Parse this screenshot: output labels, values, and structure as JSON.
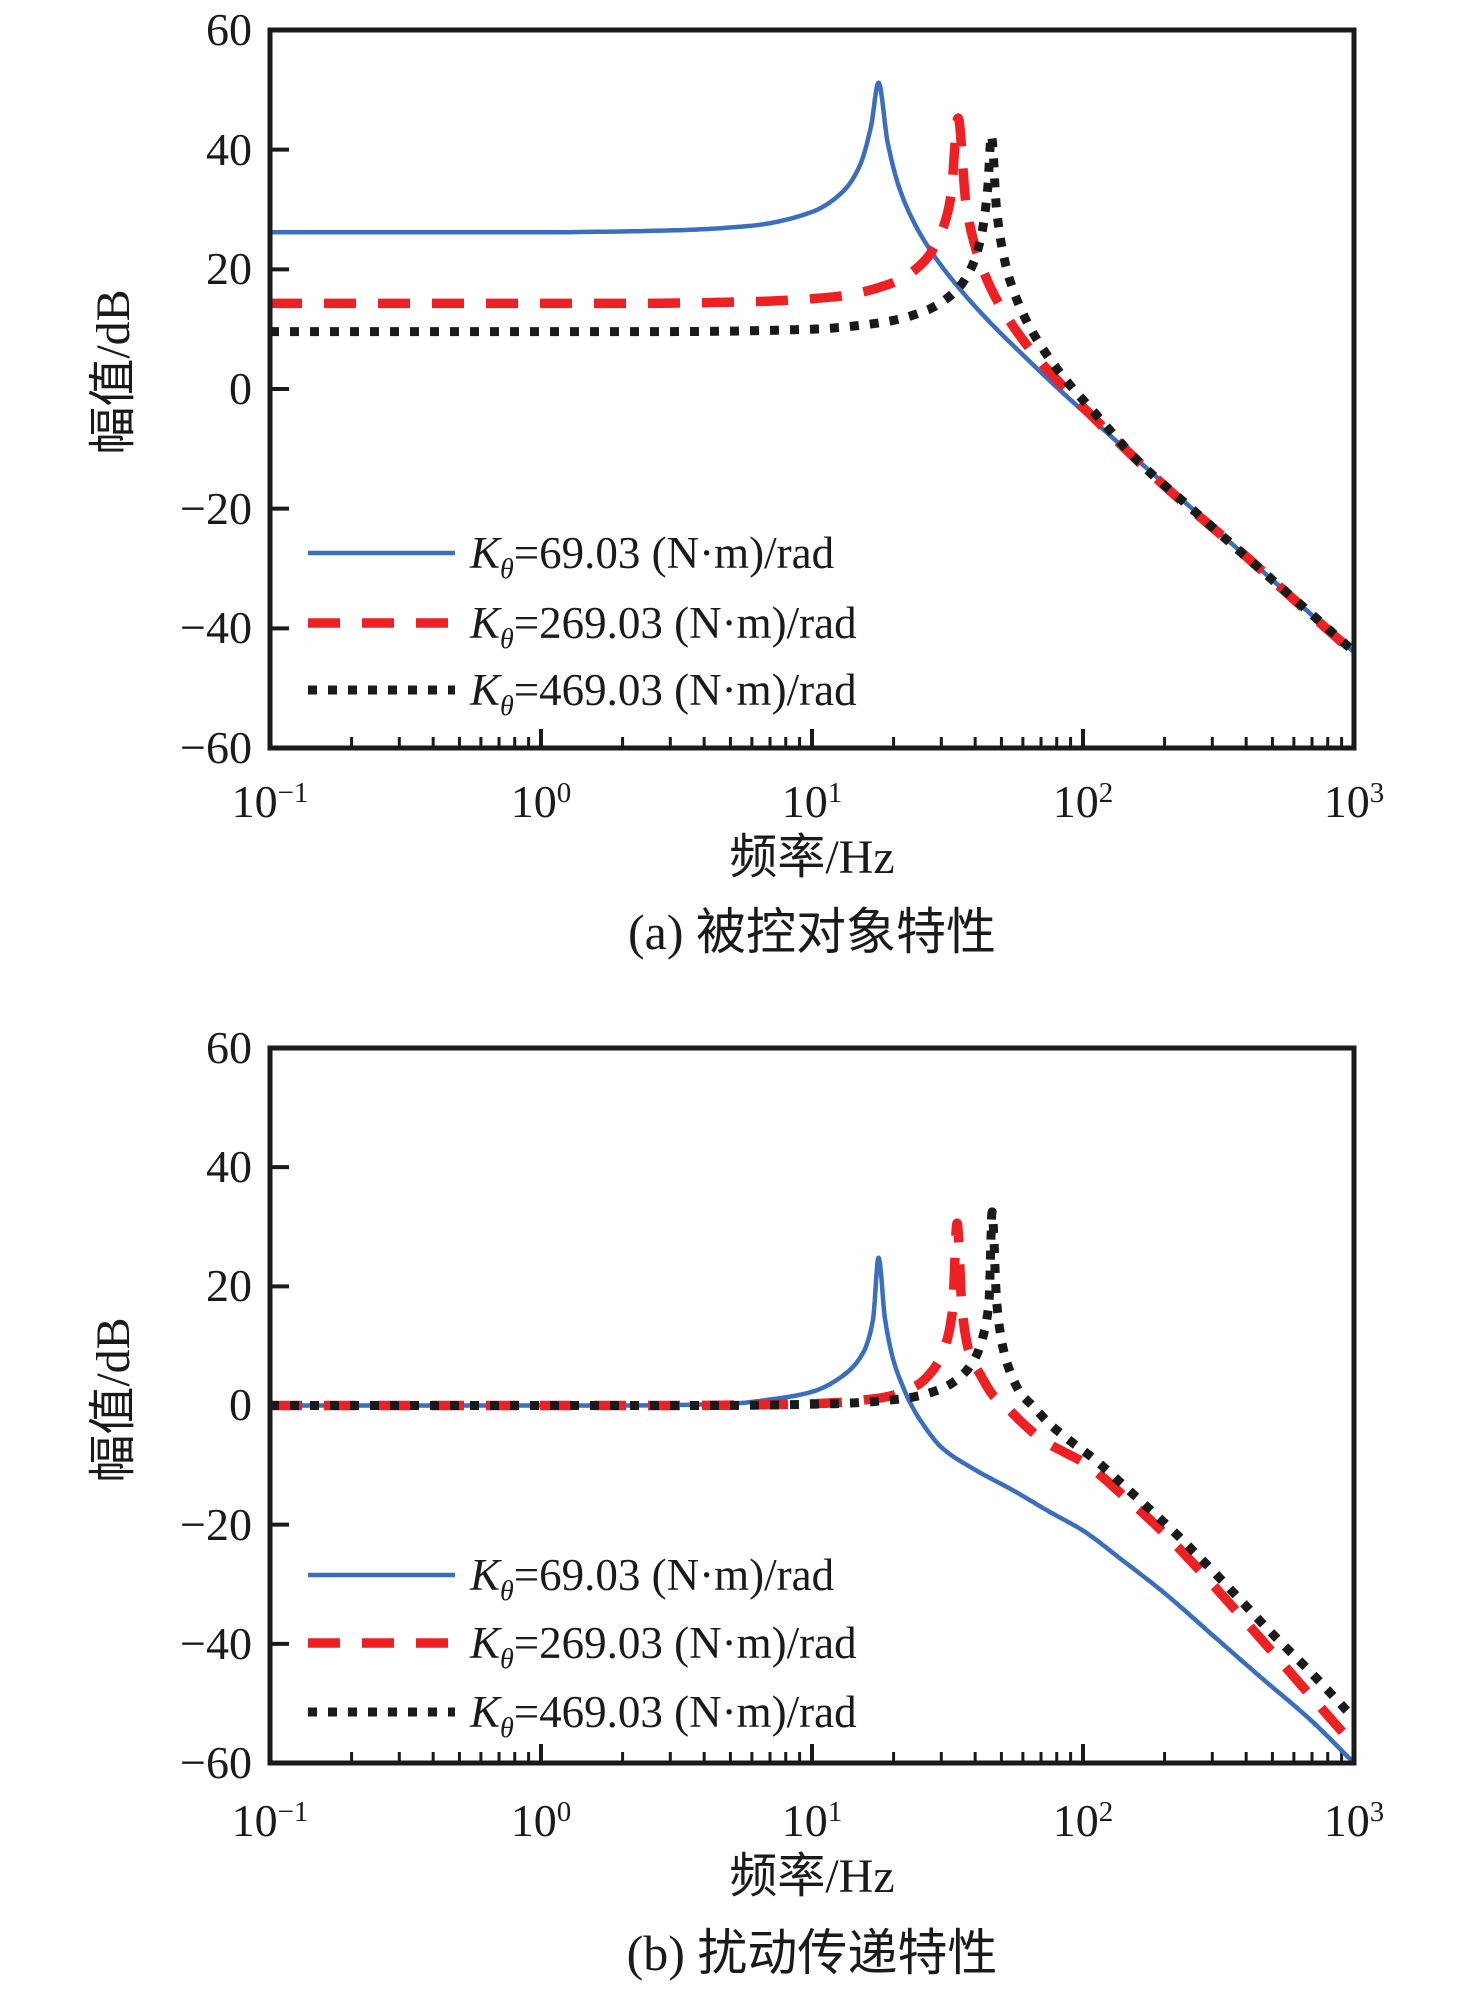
{
  "page": {
    "background": "#ffffff",
    "text_color": "#1a1a1a",
    "axis_color": "#1a1a1a"
  },
  "chart_data": [
    {
      "type": "line",
      "panel_id": "a",
      "caption": "(a) 被控对象特性",
      "xlabel": "频率/Hz",
      "ylabel": "幅值/dB",
      "x_scale": "log10",
      "xlim": [
        0.1,
        1000
      ],
      "ylim": [
        -60,
        60
      ],
      "grid": false,
      "legend_position": "lower-left-inside",
      "y_ticks": [
        60,
        40,
        20,
        0,
        -20,
        -40,
        -60
      ],
      "y_tick_labels": [
        "60",
        "40",
        "20",
        "0",
        "−20",
        "−40",
        "−60"
      ],
      "x_ticks": [
        {
          "base": "10",
          "exp": "−1"
        },
        {
          "base": "10",
          "exp": "0"
        },
        {
          "base": "10",
          "exp": "1"
        },
        {
          "base": "10",
          "exp": "2"
        },
        {
          "base": "10",
          "exp": "3"
        }
      ],
      "series": [
        {
          "label_k": "K",
          "label_sub": "θ",
          "label_rest": "=69.03 (N·m)/rad",
          "color": "#3B6FBD",
          "style": "solid",
          "low_freq_db": 26.2,
          "peak_hz": 17.6,
          "peak_db": 51.2,
          "points": [
            [
              0.1,
              26.2
            ],
            [
              1,
              26.2
            ],
            [
              3,
              26.5
            ],
            [
              6,
              27.3
            ],
            [
              10,
              29.6
            ],
            [
              13,
              33.0
            ],
            [
              15,
              37.3
            ],
            [
              16.5,
              43.8
            ],
            [
              17.6,
              51.2
            ],
            [
              19,
              41.3
            ],
            [
              21,
              33.6
            ],
            [
              24,
              27.5
            ],
            [
              28,
              22.5
            ],
            [
              35,
              16.8
            ],
            [
              45,
              11.3
            ],
            [
              60,
              5.7
            ],
            [
              80,
              0.3
            ],
            [
              100,
              -3.7
            ],
            [
              200,
              -15.9
            ],
            [
              400,
              -28.0
            ],
            [
              700,
              -37.8
            ],
            [
              1000,
              -44.0
            ]
          ]
        },
        {
          "label_k": "K",
          "label_sub": "θ",
          "label_rest": "=269.03 (N·m)/rad",
          "color": "#ED2024",
          "style": "dashed",
          "low_freq_db": 14.3,
          "peak_hz": 34.6,
          "peak_db": 45.3,
          "points": [
            [
              0.1,
              14.3
            ],
            [
              2,
              14.3
            ],
            [
              6,
              14.6
            ],
            [
              12,
              15.4
            ],
            [
              20,
              17.8
            ],
            [
              26,
              21.4
            ],
            [
              30,
              26.2
            ],
            [
              32.5,
              32.0
            ],
            [
              34.6,
              45.3
            ],
            [
              37,
              31.0
            ],
            [
              40,
              23.8
            ],
            [
              45,
              17.5
            ],
            [
              52,
              12.3
            ],
            [
              65,
              6.2
            ],
            [
              85,
              0.3
            ],
            [
              110,
              -4.9
            ],
            [
              200,
              -16.2
            ],
            [
              400,
              -28.0
            ],
            [
              700,
              -37.9
            ],
            [
              1000,
              -44.1
            ]
          ]
        },
        {
          "label_k": "K",
          "label_sub": "θ",
          "label_rest": "=469.03 (N·m)/rad",
          "color": "#1A1A1A",
          "style": "dotted",
          "low_freq_db": 9.6,
          "peak_hz": 45.9,
          "peak_db": 42.4,
          "points": [
            [
              0.1,
              9.6
            ],
            [
              3,
              9.6
            ],
            [
              10,
              10.0
            ],
            [
              18,
              11.1
            ],
            [
              26,
              13.0
            ],
            [
              33,
              15.9
            ],
            [
              38,
              19.5
            ],
            [
              42,
              25.3
            ],
            [
              44.5,
              33.5
            ],
            [
              45.9,
              42.4
            ],
            [
              48,
              29.9
            ],
            [
              52,
              20.5
            ],
            [
              58,
              14.1
            ],
            [
              68,
              8.1
            ],
            [
              85,
              1.9
            ],
            [
              110,
              -3.9
            ],
            [
              160,
              -12.1
            ],
            [
              250,
              -19.9
            ],
            [
              450,
              -30.1
            ],
            [
              700,
              -37.7
            ],
            [
              1000,
              -43.9
            ]
          ]
        }
      ]
    },
    {
      "type": "line",
      "panel_id": "b",
      "caption": "(b) 扰动传递特性",
      "xlabel": "频率/Hz",
      "ylabel": "幅值/dB",
      "x_scale": "log10",
      "xlim": [
        0.1,
        1000
      ],
      "ylim": [
        -60,
        60
      ],
      "grid": false,
      "legend_position": "lower-left-inside",
      "y_ticks": [
        60,
        40,
        20,
        0,
        -20,
        -40,
        -60
      ],
      "y_tick_labels": [
        "60",
        "40",
        "20",
        "0",
        "−20",
        "−40",
        "−60"
      ],
      "x_ticks": [
        {
          "base": "10",
          "exp": "−1"
        },
        {
          "base": "10",
          "exp": "0"
        },
        {
          "base": "10",
          "exp": "1"
        },
        {
          "base": "10",
          "exp": "2"
        },
        {
          "base": "10",
          "exp": "3"
        }
      ],
      "series": [
        {
          "label_k": "K",
          "label_sub": "θ",
          "label_rest": "=69.03 (N·m)/rad",
          "color": "#3B6FBD",
          "style": "solid",
          "low_freq_db": 0,
          "peak_hz": 17.6,
          "peak_db": 24.8,
          "points": [
            [
              0.1,
              0
            ],
            [
              2,
              0
            ],
            [
              5,
              0.3
            ],
            [
              7,
              1.0
            ],
            [
              10,
              2.3
            ],
            [
              13,
              5.0
            ],
            [
              15.5,
              9.0
            ],
            [
              16.8,
              14.5
            ],
            [
              17.6,
              24.8
            ],
            [
              18.6,
              14.5
            ],
            [
              20,
              7.5
            ],
            [
              21.5,
              3.5
            ],
            [
              23,
              0.5
            ],
            [
              26,
              -3.5
            ],
            [
              30,
              -7.0
            ],
            [
              40,
              -10.8
            ],
            [
              55,
              -14.2
            ],
            [
              75,
              -17.8
            ],
            [
              100,
              -21.0
            ],
            [
              140,
              -26.0
            ],
            [
              200,
              -31.5
            ],
            [
              300,
              -38.5
            ],
            [
              450,
              -45.5
            ],
            [
              700,
              -53.0
            ],
            [
              1000,
              -60.0
            ]
          ]
        },
        {
          "label_k": "K",
          "label_sub": "θ",
          "label_rest": "=269.03 (N·m)/rad",
          "color": "#ED2024",
          "style": "dashed",
          "low_freq_db": 0,
          "peak_hz": 34.3,
          "peak_db": 30.6,
          "points": [
            [
              0.1,
              0
            ],
            [
              3,
              0
            ],
            [
              10,
              0.3
            ],
            [
              18,
              1.3
            ],
            [
              24,
              3.2
            ],
            [
              28,
              6.0
            ],
            [
              31,
              10.0
            ],
            [
              33,
              16.0
            ],
            [
              34.3,
              30.6
            ],
            [
              35.8,
              16.0
            ],
            [
              38,
              9.0
            ],
            [
              42,
              5.0
            ],
            [
              47,
              1.5
            ],
            [
              52,
              -0.2
            ],
            [
              60,
              -3.0
            ],
            [
              72,
              -6.0
            ],
            [
              85,
              -7.8
            ],
            [
              100,
              -9.5
            ],
            [
              140,
              -15.0
            ],
            [
              200,
              -21.5
            ],
            [
              300,
              -30.0
            ],
            [
              450,
              -39.0
            ],
            [
              700,
              -49.0
            ],
            [
              1000,
              -57.0
            ]
          ]
        },
        {
          "label_k": "K",
          "label_sub": "θ",
          "label_rest": "=469.03 (N·m)/rad",
          "color": "#1A1A1A",
          "style": "dotted",
          "low_freq_db": 0,
          "peak_hz": 46.2,
          "peak_db": 32.5,
          "points": [
            [
              0.1,
              0
            ],
            [
              4,
              0
            ],
            [
              12,
              0.3
            ],
            [
              22,
              1.2
            ],
            [
              30,
              2.8
            ],
            [
              36,
              5.2
            ],
            [
              40,
              8.0
            ],
            [
              43,
              12.0
            ],
            [
              45,
              17.5
            ],
            [
              46.2,
              32.5
            ],
            [
              48,
              17.5
            ],
            [
              50.5,
              10.0
            ],
            [
              54,
              5.5
            ],
            [
              59,
              2.0
            ],
            [
              65,
              0.0
            ],
            [
              75,
              -3.0
            ],
            [
              90,
              -6.0
            ],
            [
              110,
              -9.0
            ],
            [
              150,
              -14.5
            ],
            [
              220,
              -21.5
            ],
            [
              320,
              -29.0
            ],
            [
              480,
              -37.5
            ],
            [
              700,
              -45.0
            ],
            [
              1000,
              -52.5
            ]
          ]
        }
      ]
    }
  ]
}
